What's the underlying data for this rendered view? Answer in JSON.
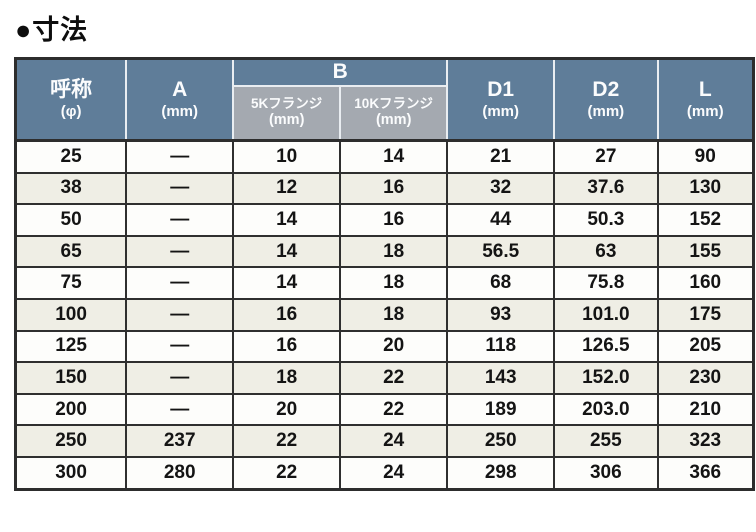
{
  "page": {
    "title": "●寸法"
  },
  "colors": {
    "header_bg": "#5f7d99",
    "subheader_bg": "#a4a9b0",
    "row_bg": "#fdfdfb",
    "row_alt_bg": "#efeee5",
    "border": "#2d2d2d",
    "header_separator": "#e9edf1",
    "header_text": "#fbfcfd"
  },
  "table": {
    "headers": {
      "col_name": {
        "main": "呼称",
        "unit": "(φ)"
      },
      "col_a": {
        "main": "A",
        "unit": "(mm)"
      },
      "b_group": {
        "main": "B"
      },
      "b_sub_5k": {
        "line1": "5Kフランジ",
        "line2": "(mm)"
      },
      "b_sub_10k": {
        "line1": "10Kフランジ",
        "line2": "(mm)"
      },
      "col_d1": {
        "main": "D1",
        "unit": "(mm)"
      },
      "col_d2": {
        "main": "D2",
        "unit": "(mm)"
      },
      "col_l": {
        "main": "L",
        "unit": "(mm)"
      }
    },
    "rows": [
      [
        "25",
        "—",
        "10",
        "14",
        "21",
        "27",
        "90"
      ],
      [
        "38",
        "—",
        "12",
        "16",
        "32",
        "37.6",
        "130"
      ],
      [
        "50",
        "—",
        "14",
        "16",
        "44",
        "50.3",
        "152"
      ],
      [
        "65",
        "—",
        "14",
        "18",
        "56.5",
        "63",
        "155"
      ],
      [
        "75",
        "—",
        "14",
        "18",
        "68",
        "75.8",
        "160"
      ],
      [
        "100",
        "—",
        "16",
        "18",
        "93",
        "101.0",
        "175"
      ],
      [
        "125",
        "—",
        "16",
        "20",
        "118",
        "126.5",
        "205"
      ],
      [
        "150",
        "—",
        "18",
        "22",
        "143",
        "152.0",
        "230"
      ],
      [
        "200",
        "—",
        "20",
        "22",
        "189",
        "203.0",
        "210"
      ],
      [
        "250",
        "237",
        "22",
        "24",
        "250",
        "255",
        "323"
      ],
      [
        "300",
        "280",
        "22",
        "24",
        "298",
        "306",
        "366"
      ]
    ]
  }
}
